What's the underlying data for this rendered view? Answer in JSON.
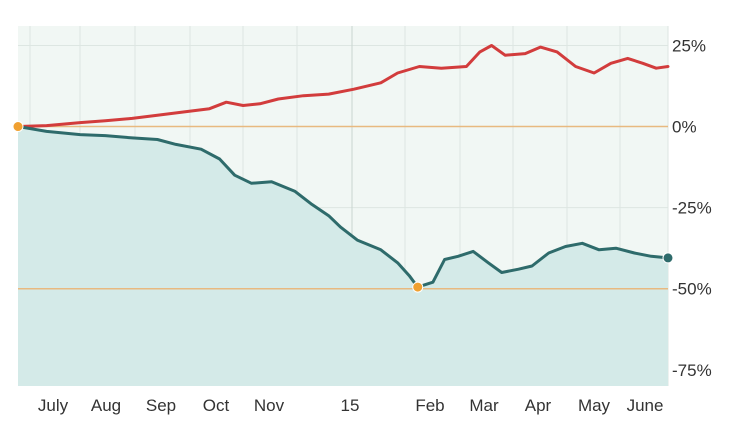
{
  "chart_data": {
    "type": "line",
    "title": "",
    "xlabel": "",
    "ylabel": "",
    "ylim": [
      -80,
      31
    ],
    "y_ticks": [
      {
        "value": 25,
        "label": "25%"
      },
      {
        "value": 0,
        "label": "0%"
      },
      {
        "value": -25,
        "label": "-25%"
      },
      {
        "value": -50,
        "label": "-50%"
      },
      {
        "value": -75,
        "label": "-75%"
      }
    ],
    "x_ticks": [
      {
        "label": "July"
      },
      {
        "label": "Aug"
      },
      {
        "label": "Sep"
      },
      {
        "label": "Oct"
      },
      {
        "label": "Nov"
      },
      {
        "label": "15"
      },
      {
        "label": "Feb"
      },
      {
        "label": "Mar"
      },
      {
        "label": "Apr"
      },
      {
        "label": "May"
      },
      {
        "label": "June"
      }
    ],
    "grid": true,
    "reference_lines": [
      0,
      -50
    ],
    "series": [
      {
        "color": "#d23c3c",
        "fill": false,
        "points": [
          [
            "2014-06-03",
            0
          ],
          [
            "2014-06-20",
            0.3
          ],
          [
            "2014-07-10",
            1.2
          ],
          [
            "2014-07-25",
            1.8
          ],
          [
            "2014-08-10",
            2.5
          ],
          [
            "2014-08-25",
            3.5
          ],
          [
            "2014-09-10",
            4.5
          ],
          [
            "2014-09-25",
            5.5
          ],
          [
            "2014-10-05",
            7.5
          ],
          [
            "2014-10-15",
            6.5
          ],
          [
            "2014-10-25",
            7.0
          ],
          [
            "2014-11-05",
            8.5
          ],
          [
            "2014-11-20",
            9.5
          ],
          [
            "2014-12-05",
            10.0
          ],
          [
            "2014-12-20",
            11.5
          ],
          [
            "2015-01-05",
            13.5
          ],
          [
            "2015-01-15",
            16.5
          ],
          [
            "2015-01-28",
            18.5
          ],
          [
            "2015-02-10",
            18.0
          ],
          [
            "2015-02-25",
            18.5
          ],
          [
            "2015-03-05",
            23.0
          ],
          [
            "2015-03-12",
            25.0
          ],
          [
            "2015-03-20",
            22.0
          ],
          [
            "2015-04-01",
            22.5
          ],
          [
            "2015-04-10",
            24.5
          ],
          [
            "2015-04-20",
            23.0
          ],
          [
            "2015-05-01",
            18.5
          ],
          [
            "2015-05-12",
            16.5
          ],
          [
            "2015-05-22",
            19.5
          ],
          [
            "2015-06-01",
            21.0
          ],
          [
            "2015-06-10",
            19.5
          ],
          [
            "2015-06-18",
            18.0
          ],
          [
            "2015-06-25",
            18.5
          ]
        ]
      },
      {
        "color": "#2e6b6b",
        "fill": true,
        "fill_color": "#d4eae8",
        "points": [
          [
            "2014-06-03",
            0
          ],
          [
            "2014-06-20",
            -1.5
          ],
          [
            "2014-07-10",
            -2.5
          ],
          [
            "2014-07-25",
            -2.8
          ],
          [
            "2014-08-10",
            -3.5
          ],
          [
            "2014-08-25",
            -4.0
          ],
          [
            "2014-09-05",
            -5.5
          ],
          [
            "2014-09-20",
            -7.0
          ],
          [
            "2014-10-01",
            -10.0
          ],
          [
            "2014-10-10",
            -15.0
          ],
          [
            "2014-10-20",
            -17.5
          ],
          [
            "2014-11-01",
            -17.0
          ],
          [
            "2014-11-15",
            -20.0
          ],
          [
            "2014-11-25",
            -24.0
          ],
          [
            "2014-12-05",
            -27.5
          ],
          [
            "2014-12-12",
            -31.0
          ],
          [
            "2014-12-22",
            -35.0
          ],
          [
            "2015-01-05",
            -38.0
          ],
          [
            "2015-01-15",
            -42.0
          ],
          [
            "2015-01-22",
            -46.0
          ],
          [
            "2015-01-27",
            -49.5
          ],
          [
            "2015-02-05",
            -48.0
          ],
          [
            "2015-02-12",
            -41.0
          ],
          [
            "2015-02-20",
            -40.0
          ],
          [
            "2015-03-01",
            -38.5
          ],
          [
            "2015-03-10",
            -42.0
          ],
          [
            "2015-03-18",
            -45.0
          ],
          [
            "2015-03-28",
            -44.0
          ],
          [
            "2015-04-05",
            -43.0
          ],
          [
            "2015-04-15",
            -39.0
          ],
          [
            "2015-04-25",
            -37.0
          ],
          [
            "2015-05-05",
            -36.0
          ],
          [
            "2015-05-15",
            -38.0
          ],
          [
            "2015-05-25",
            -37.5
          ],
          [
            "2015-06-05",
            -39.0
          ],
          [
            "2015-06-15",
            -40.0
          ],
          [
            "2015-06-25",
            -40.5
          ]
        ]
      }
    ],
    "markers": [
      {
        "series": 0,
        "x": "2014-06-03",
        "y": 0,
        "color": "#f0a030"
      },
      {
        "series": 1,
        "x": "2015-01-27",
        "y": -49.5,
        "color": "#f0a030"
      },
      {
        "series": 1,
        "x": "2015-06-25",
        "y": -40.5,
        "color": "#2e6b6b"
      }
    ]
  }
}
